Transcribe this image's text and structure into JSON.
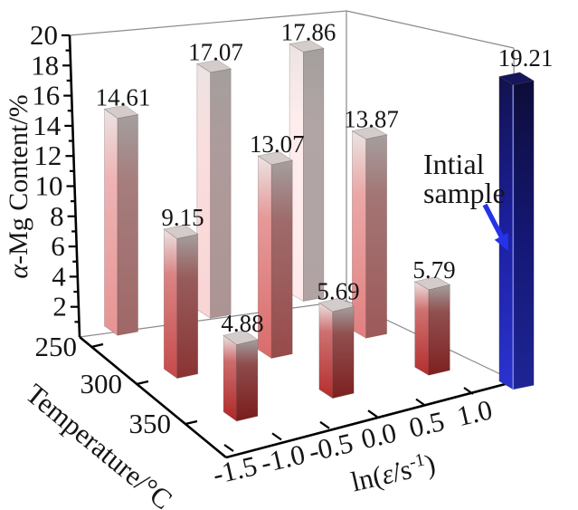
{
  "chart_data": {
    "type": "bar",
    "subtype": "3d-column",
    "title": "",
    "value_axis": {
      "label_italic": "α",
      "label_rest": "-Mg Content/%",
      "min": 0,
      "max": 20,
      "major_ticks": [
        2,
        4,
        6,
        8,
        10,
        12,
        14,
        16,
        18,
        20
      ],
      "minor_tick_step": 1
    },
    "temperature_axis": {
      "label": "Temperature/°C",
      "ticks": [
        "250",
        "300",
        "350"
      ]
    },
    "strain_rate_axis": {
      "label_prefix": "ln(",
      "label_symbol": "ε̇",
      "label_mid": "/s",
      "label_sup": "-1",
      "label_suffix": ")",
      "ticks": [
        "-1.5",
        "-1.0",
        "-0.5",
        "0.0",
        "0.5",
        "1.0"
      ]
    },
    "categories_strain_rate": [
      "-1.0",
      "0.0",
      "1.0"
    ],
    "series": [
      {
        "temperature": "250",
        "values": [
          14.61,
          17.07,
          17.86
        ]
      },
      {
        "temperature": "300",
        "values": [
          9.15,
          13.07,
          13.87
        ]
      },
      {
        "temperature": "350",
        "values": [
          4.88,
          5.69,
          5.79
        ]
      }
    ],
    "initial_sample": {
      "value": 19.21,
      "annotation_lines": [
        "Intial",
        "sample"
      ]
    },
    "colors": {
      "bar_low": "#a02020",
      "bar_mid": "#c86060",
      "bar_high": "#eadada",
      "bar_top_gradient": "#d8d1d0",
      "bar_top_face": "#d3cccb",
      "mid_blend": "#e8dedc",
      "initial_bottom": "#2a33cf",
      "initial_mid": "#1c20a0",
      "initial_top": "#12124e",
      "initial_top_face": "#16165a",
      "initial_edge": "#8890e8",
      "arrow": "#2433e8",
      "axis": "#000000",
      "wall": "#8a8a8a",
      "text": "#151515"
    },
    "layout": {
      "grid": "off",
      "legend": "none",
      "value_range": [
        0,
        20
      ]
    }
  }
}
